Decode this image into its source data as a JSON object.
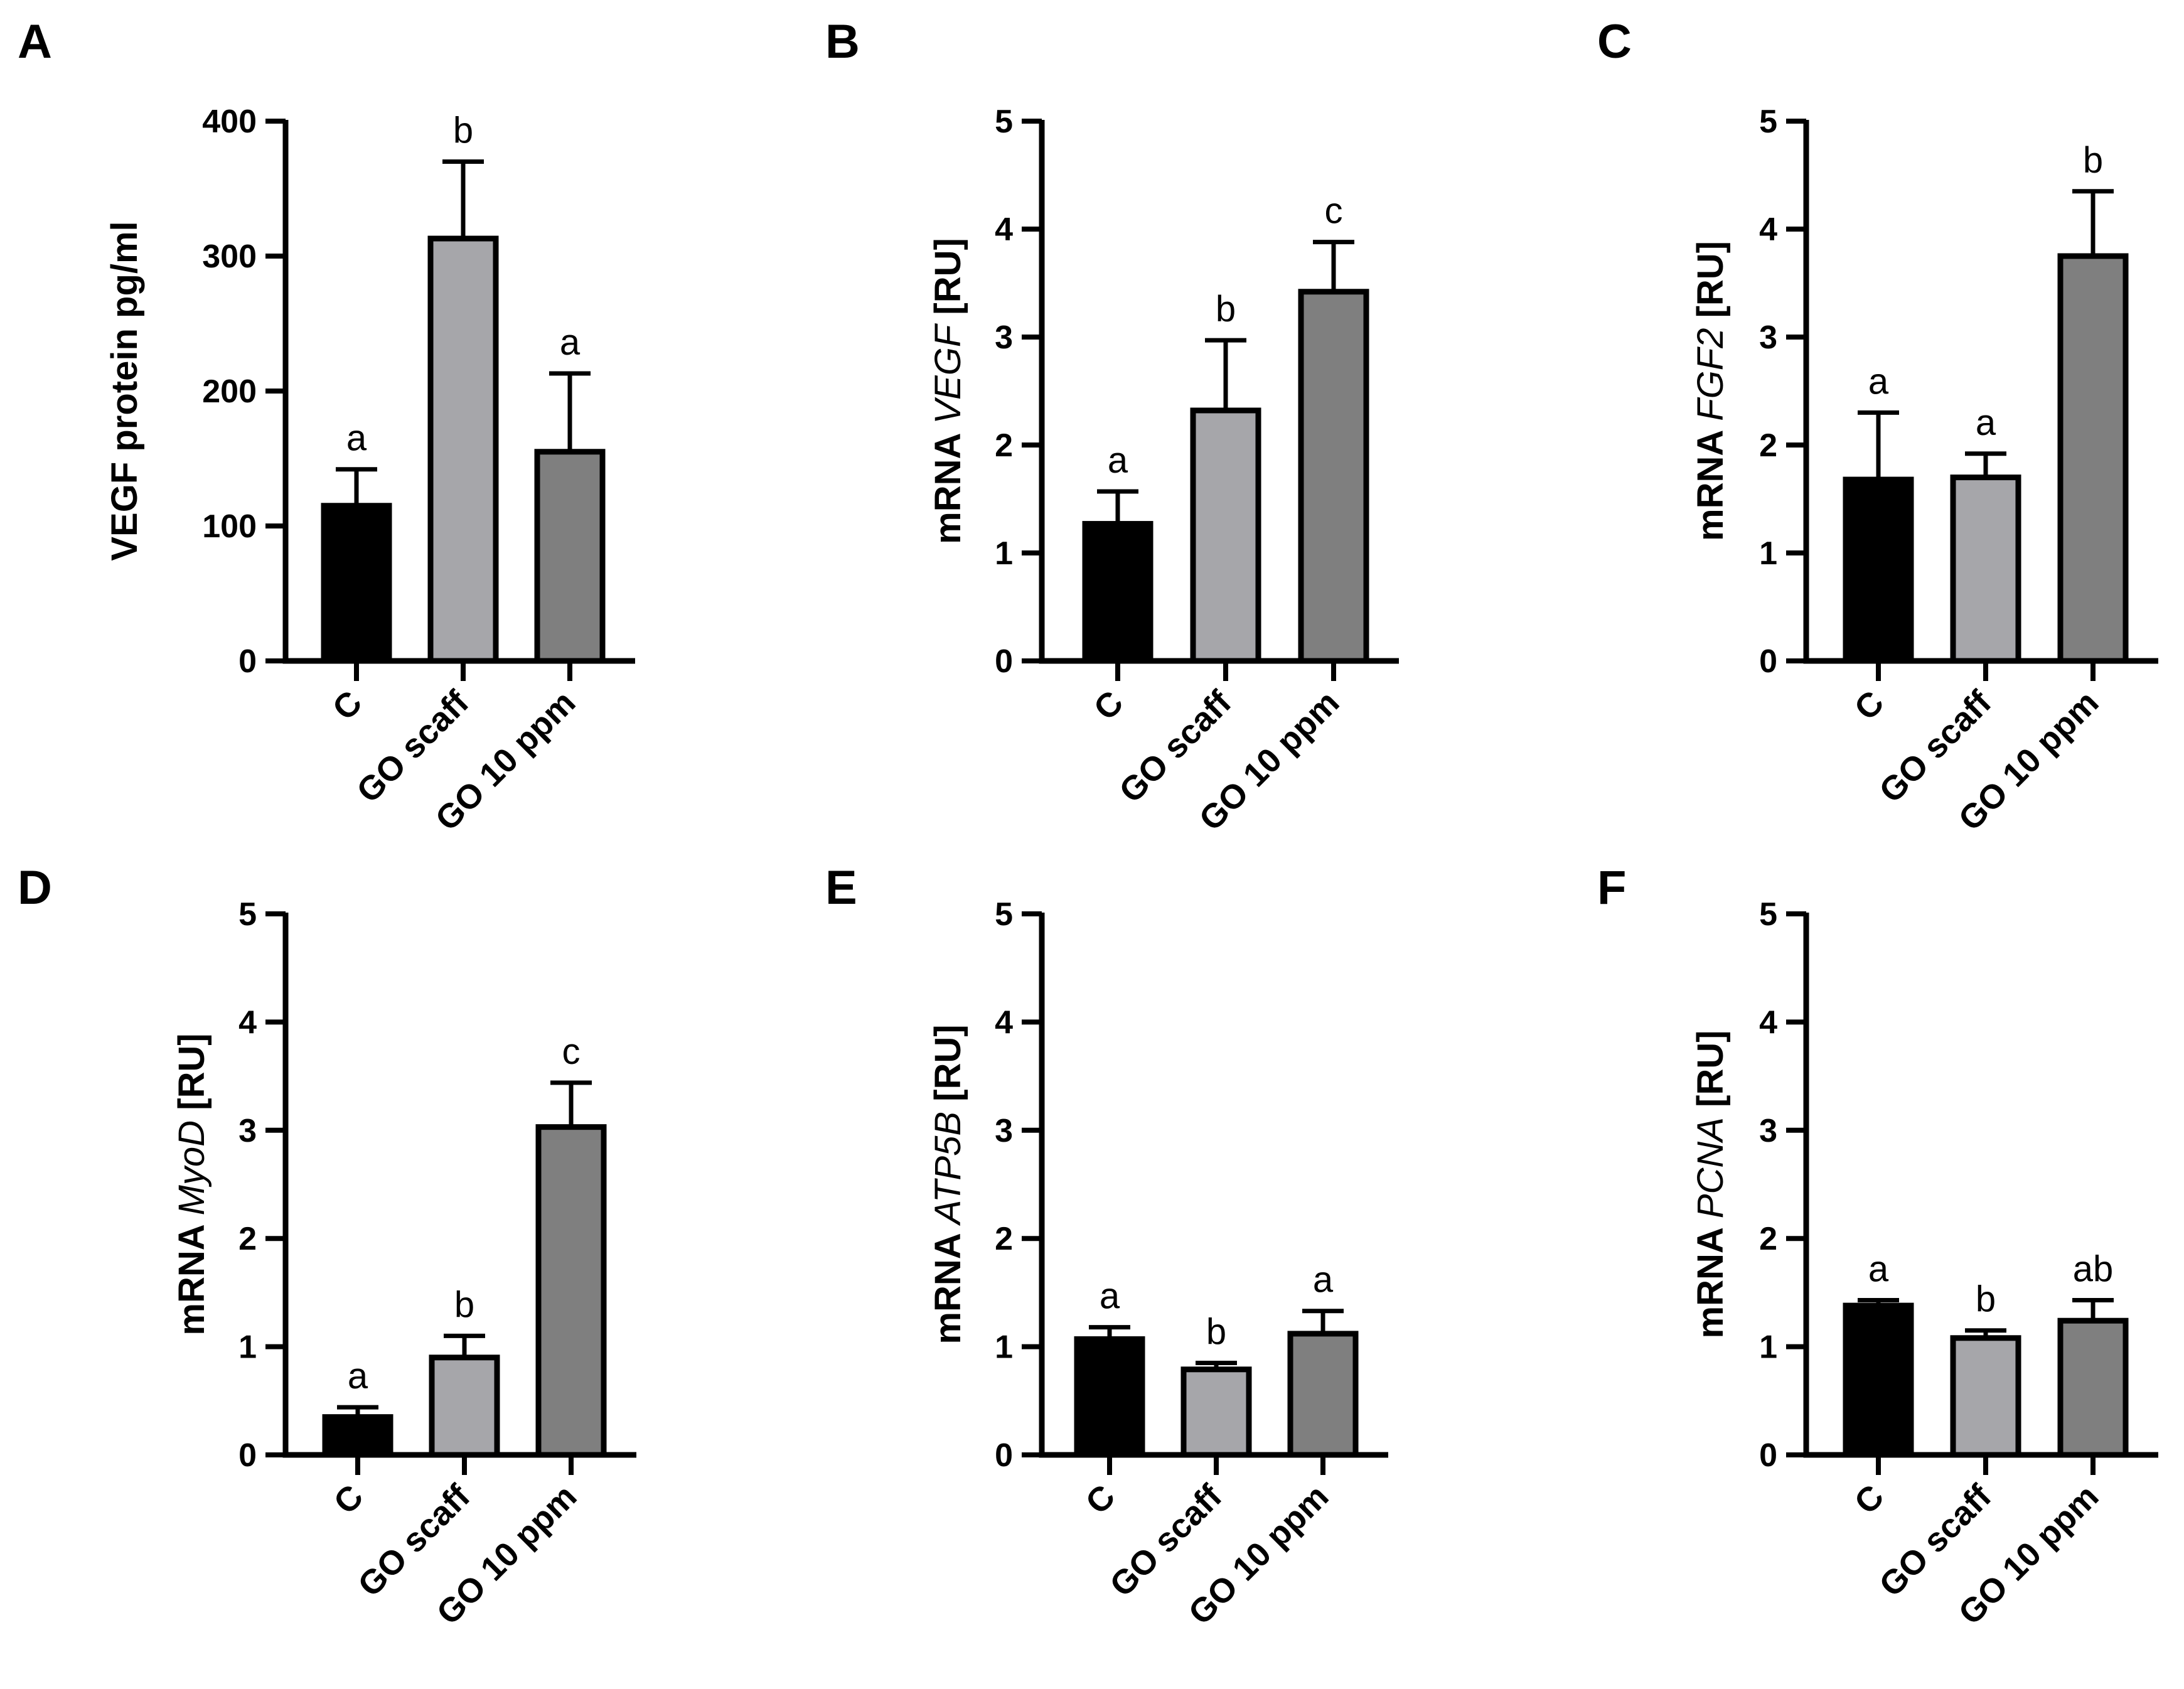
{
  "chart_data": [
    {
      "panel": "A",
      "type": "bar",
      "categories": [
        "C",
        "GO scaff",
        "GO 10 ppm"
      ],
      "values": [
        115,
        313,
        155
      ],
      "errors": [
        27,
        57,
        58
      ],
      "significance": [
        "a",
        "b",
        "a"
      ],
      "colors": [
        "#000000",
        "#a6a6aa",
        "#7f7f7f"
      ],
      "ylabel": {
        "plain": "VEGF protein  pg/ml",
        "pre": "",
        "gene": "",
        "post": ""
      },
      "ylim": [
        0,
        400
      ],
      "yticks": [
        0,
        100,
        200,
        300,
        400
      ],
      "grid": false
    },
    {
      "panel": "B",
      "type": "bar",
      "categories": [
        "C",
        "GO scaff",
        "GO 10 ppm"
      ],
      "values": [
        1.27,
        2.32,
        3.42
      ],
      "errors": [
        0.3,
        0.65,
        0.46
      ],
      "significance": [
        "a",
        "b",
        "c"
      ],
      "colors": [
        "#000000",
        "#a6a6aa",
        "#7f7f7f"
      ],
      "ylabel": {
        "plain": "",
        "pre": "mRNA ",
        "gene": "VEGF",
        "post": " [RU]"
      },
      "ylim": [
        0,
        5
      ],
      "yticks": [
        0,
        1,
        2,
        3,
        4,
        5
      ],
      "grid": false
    },
    {
      "panel": "C",
      "type": "bar",
      "categories": [
        "C",
        "GO scaff",
        "GO 10 ppm"
      ],
      "values": [
        1.68,
        1.7,
        3.75
      ],
      "errors": [
        0.62,
        0.22,
        0.6
      ],
      "significance": [
        "a",
        "a",
        "b"
      ],
      "colors": [
        "#000000",
        "#a6a6aa",
        "#7f7f7f"
      ],
      "ylabel": {
        "plain": "",
        "pre": "mRNA ",
        "gene": "FGF2",
        "post": " [RU]"
      },
      "ylim": [
        0,
        5
      ],
      "yticks": [
        0,
        1,
        2,
        3,
        4,
        5
      ],
      "grid": false
    },
    {
      "panel": "D",
      "type": "bar",
      "categories": [
        "C",
        "GO scaff",
        "GO 10 ppm"
      ],
      "values": [
        0.35,
        0.9,
        3.03
      ],
      "errors": [
        0.09,
        0.2,
        0.41
      ],
      "significance": [
        "a",
        "b",
        "c"
      ],
      "colors": [
        "#000000",
        "#a6a6aa",
        "#7f7f7f"
      ],
      "ylabel": {
        "plain": "",
        "pre": "mRNA ",
        "gene": "MyoD",
        "post": " [RU]"
      },
      "ylim": [
        0,
        5
      ],
      "yticks": [
        0,
        1,
        2,
        3,
        4,
        5
      ],
      "grid": false
    },
    {
      "panel": "E",
      "type": "bar",
      "categories": [
        "C",
        "GO scaff",
        "GO 10 ppm"
      ],
      "values": [
        1.07,
        0.79,
        1.12
      ],
      "errors": [
        0.11,
        0.06,
        0.21
      ],
      "significance": [
        "a",
        "b",
        "a"
      ],
      "colors": [
        "#000000",
        "#a6a6aa",
        "#7f7f7f"
      ],
      "ylabel": {
        "plain": "",
        "pre": "mRNA ",
        "gene": "ATP5B",
        "post": " [RU]"
      },
      "ylim": [
        0,
        5
      ],
      "yticks": [
        0,
        1,
        2,
        3,
        4,
        5
      ],
      "grid": false
    },
    {
      "panel": "F",
      "type": "bar",
      "categories": [
        "C",
        "GO scaff",
        "GO 10 ppm"
      ],
      "values": [
        1.38,
        1.08,
        1.24
      ],
      "errors": [
        0.05,
        0.07,
        0.19
      ],
      "significance": [
        "a",
        "b",
        "ab"
      ],
      "colors": [
        "#000000",
        "#a6a6aa",
        "#7f7f7f"
      ],
      "ylabel": {
        "plain": "",
        "pre": "mRNA ",
        "gene": "PCNA",
        "post": " [RU]"
      },
      "ylim": [
        0,
        5
      ],
      "yticks": [
        0,
        1,
        2,
        3,
        4,
        5
      ],
      "grid": false
    }
  ]
}
